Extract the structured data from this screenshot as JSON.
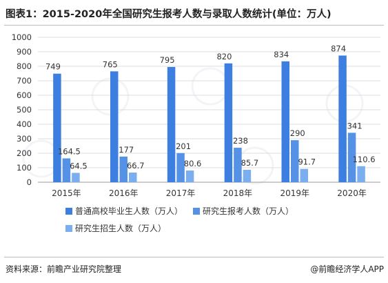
{
  "title": "图表1：2015-2020年全国研究生报考人数与录取人数统计(单位：万人)",
  "source": "资料来源：前瞻产业研究院整理",
  "brand": "@前瞻经济学人APP",
  "colors": {
    "series1": "#3d7fe0",
    "series2": "#5592e6",
    "series3": "#7aaeee",
    "grid": "#dcdcdc",
    "axis": "#999999",
    "watermark": "#b8c4d6"
  },
  "chart_data": {
    "type": "bar",
    "categories": [
      "2015年",
      "2016年",
      "2017年",
      "2018年",
      "2019年",
      "2020年"
    ],
    "series": [
      {
        "name": "普通高校毕业生人数（万人）",
        "values": [
          749,
          765,
          795,
          820,
          834,
          874
        ]
      },
      {
        "name": "研究生报考人数（万人）",
        "values": [
          164.5,
          177,
          201,
          238,
          290,
          341
        ]
      },
      {
        "name": "研究生招生人数（万人）",
        "values": [
          64.5,
          66.7,
          80.6,
          85.7,
          91.7,
          110.6
        ]
      }
    ],
    "yticks": [
      0,
      100,
      200,
      300,
      400,
      500,
      600,
      700,
      800,
      900,
      1000
    ],
    "ylim": [
      0,
      1000
    ],
    "grid": true,
    "legend_position": "bottom"
  }
}
